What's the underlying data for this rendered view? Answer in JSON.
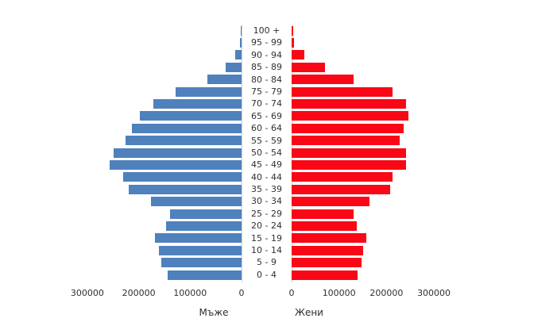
{
  "chart_data": {
    "type": "bar",
    "variant": "population_pyramid",
    "title": "",
    "grid": false,
    "legend": false,
    "categories": [
      "100 +",
      "95 - 99",
      "90 - 94",
      "85 - 89",
      "80 - 84",
      "75 - 79",
      "70 - 74",
      "65 - 69",
      "60 - 64",
      "55 - 59",
      "50 - 54",
      "45 - 49",
      "40 - 44",
      "35 - 39",
      "30 - 34",
      "25 - 29",
      "20 - 24",
      "15 - 19",
      "10 - 14",
      "5 - 9",
      "0 - 4"
    ],
    "series": [
      {
        "name": "Мъже",
        "side": "left",
        "color": "#4f81bd",
        "values": [
          1500,
          3000,
          12000,
          31000,
          66000,
          128000,
          172000,
          198000,
          213000,
          226000,
          249000,
          257000,
          230000,
          220000,
          176000,
          139000,
          147000,
          169000,
          161000,
          156000,
          144000
        ]
      },
      {
        "name": "Жени",
        "side": "right",
        "color": "#f90716",
        "values": [
          3000,
          5000,
          27000,
          70000,
          130000,
          212000,
          242000,
          247000,
          237000,
          228000,
          242000,
          242000,
          213000,
          207000,
          165000,
          130000,
          137000,
          157000,
          150000,
          147000,
          139000
        ]
      }
    ],
    "axes": {
      "left": {
        "label": "Мъже",
        "direction": "right_to_left",
        "max": 408000,
        "ticks": [
          {
            "text": "300000",
            "value": 300000
          },
          {
            "text": "200000",
            "value": 200000
          },
          {
            "text": "100000",
            "value": 100000
          },
          {
            "text": "0",
            "value": 0
          }
        ]
      },
      "right": {
        "label": "Жени",
        "direction": "left_to_right",
        "max": 449000,
        "ticks": [
          {
            "text": "0",
            "value": 0
          },
          {
            "text": "100000",
            "value": 100000
          },
          {
            "text": "200000",
            "value": 200000
          },
          {
            "text": "300000",
            "value": 300000
          }
        ]
      }
    }
  },
  "colors": {
    "men": "#4f81bd",
    "women": "#f90716",
    "axis_line": "#cfcfcf",
    "text": "#303030",
    "background": "#ffffff"
  }
}
